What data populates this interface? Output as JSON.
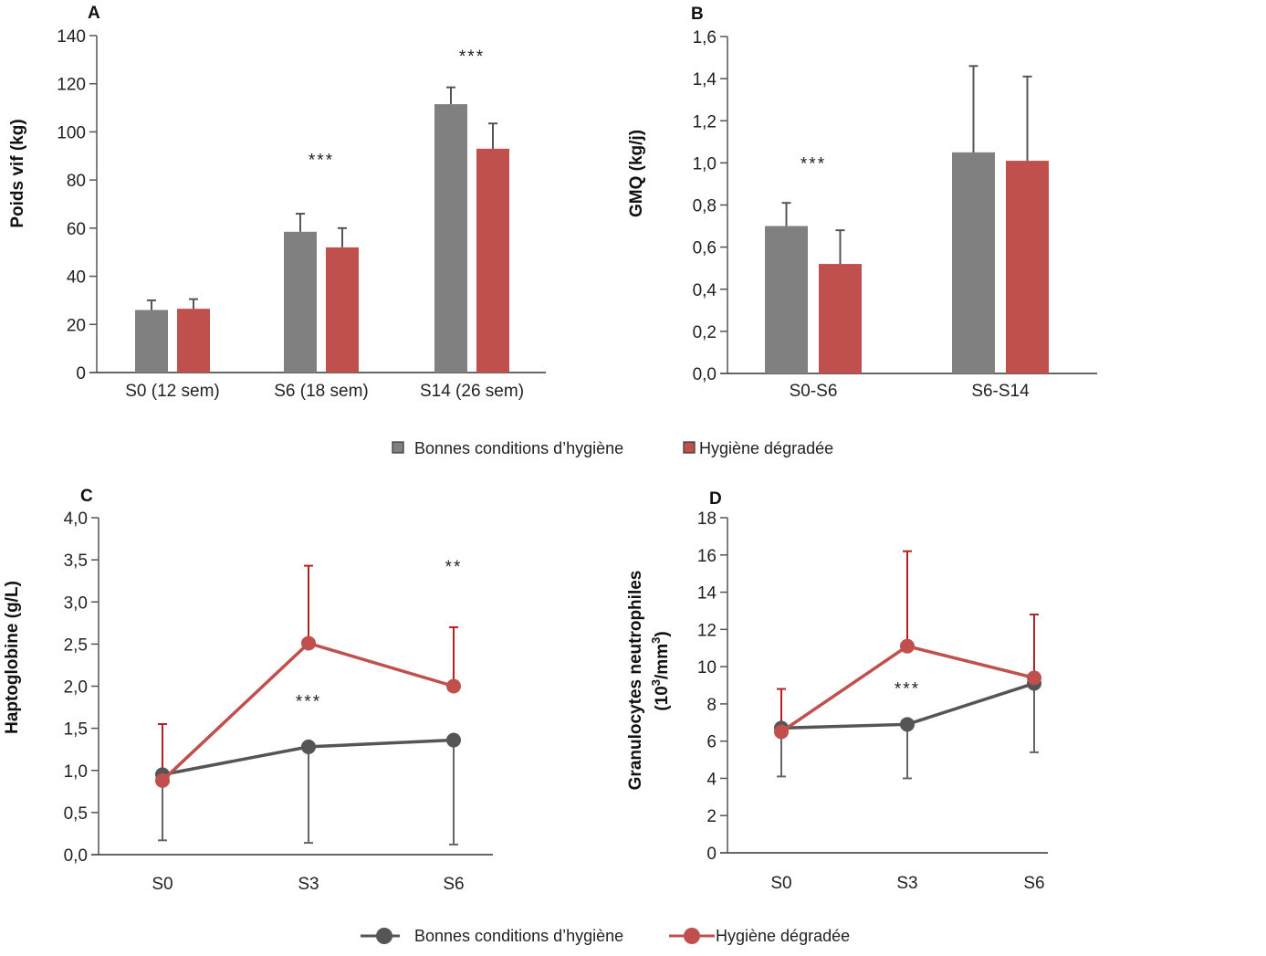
{
  "colors": {
    "good": "#808080",
    "good_line": "#555558",
    "degraded": "#c0504d",
    "degraded_err": "#b22222",
    "axis": "#555555"
  },
  "legend_bars": {
    "items": [
      {
        "label": "Bonnes conditions d’hygiène"
      },
      {
        "label": "Hygiène dégradée"
      }
    ]
  },
  "legend_lines": {
    "items": [
      {
        "label": "Bonnes conditions d’hygiène"
      },
      {
        "label": "Hygiène dégradée"
      }
    ]
  },
  "chart_data": [
    {
      "panel": "A",
      "type": "bar",
      "title": "",
      "ylabel": "Poids vif (kg)",
      "xlabel": "",
      "ylim": [
        0,
        140
      ],
      "yticks": [
        0,
        20,
        40,
        60,
        80,
        100,
        120,
        140
      ],
      "ytick_labels": [
        "0",
        "20",
        "40",
        "60",
        "80",
        "100",
        "120",
        "140"
      ],
      "categories": [
        "S0 (12 sem)",
        "S6 (18 sem)",
        "S14 (26 sem)"
      ],
      "series": [
        {
          "name": "Bonnes conditions d’hygiène",
          "values": [
            26,
            58.5,
            111.5
          ],
          "err_upper": [
            30,
            66,
            118.5
          ]
        },
        {
          "name": "Hygiène dégradée",
          "values": [
            26.5,
            52,
            93
          ],
          "err_upper": [
            30.5,
            60,
            103.5
          ]
        }
      ],
      "annotations": [
        {
          "category": 1,
          "text": "***",
          "y": 86
        },
        {
          "category": 2,
          "text": "***",
          "y": 129
        }
      ],
      "grid": false
    },
    {
      "panel": "B",
      "type": "bar",
      "title": "",
      "ylabel": "GMQ (kg/j)",
      "xlabel": "",
      "ylim": [
        0,
        1.6
      ],
      "yticks": [
        0,
        0.2,
        0.4,
        0.6,
        0.8,
        1.0,
        1.2,
        1.4,
        1.6
      ],
      "ytick_labels": [
        "0,0",
        "0,2",
        "0,4",
        "0,6",
        "0,8",
        "1,0",
        "1,2",
        "1,4",
        "1,6"
      ],
      "categories": [
        "S0-S6",
        "S6-S14"
      ],
      "series": [
        {
          "name": "Bonnes conditions d’hygiène",
          "values": [
            0.7,
            1.05
          ],
          "err_upper": [
            0.81,
            1.46
          ]
        },
        {
          "name": "Hygiène dégradée",
          "values": [
            0.52,
            1.01
          ],
          "err_upper": [
            0.68,
            1.41
          ]
        }
      ],
      "annotations": [
        {
          "category": 0,
          "text": "***",
          "y": 0.97
        }
      ],
      "grid": false
    },
    {
      "panel": "C",
      "type": "line",
      "title": "",
      "ylabel": "Haptoglobine (g/L)",
      "xlabel": "",
      "ylim": [
        0,
        4.0
      ],
      "yticks": [
        0,
        0.5,
        1.0,
        1.5,
        2.0,
        2.5,
        3.0,
        3.5,
        4.0
      ],
      "ytick_labels": [
        "0,0",
        "0,5",
        "1,0",
        "1,5",
        "2,0",
        "2,5",
        "3,0",
        "3,5",
        "4,0"
      ],
      "categories": [
        "S0",
        "S3",
        "S6"
      ],
      "series": [
        {
          "name": "Bonnes conditions d’hygiène",
          "values": [
            0.95,
            1.28,
            1.36
          ],
          "err_lower": [
            0.17,
            0.14,
            0.12
          ]
        },
        {
          "name": "Hygiène dégradée",
          "values": [
            0.88,
            2.51,
            2.0
          ],
          "err_upper": [
            1.55,
            3.43,
            2.7
          ]
        }
      ],
      "annotations": [
        {
          "category": 1,
          "text": "***",
          "y": 1.75
        },
        {
          "category": 2,
          "text": "**",
          "y": 3.35
        }
      ],
      "grid": false
    },
    {
      "panel": "D",
      "type": "line",
      "title": "",
      "ylabel": "Granulocytes neutrophiles",
      "ylabel_line2": "(10",
      "ylabel_sup1": "3",
      "ylabel_mid": "/mm",
      "ylabel_sup2": "3",
      "ylabel_end": ")",
      "xlabel": "",
      "ylim": [
        0,
        18
      ],
      "yticks": [
        0,
        2,
        4,
        6,
        8,
        10,
        12,
        14,
        16,
        18
      ],
      "ytick_labels": [
        "0",
        "2",
        "4",
        "6",
        "8",
        "10",
        "12",
        "14",
        "16",
        "18"
      ],
      "categories": [
        "S0",
        "S3",
        "S6"
      ],
      "series": [
        {
          "name": "Bonnes conditions d’hygiène",
          "values": [
            6.7,
            6.9,
            9.1
          ],
          "err_lower": [
            4.1,
            4.0,
            5.4
          ]
        },
        {
          "name": "Hygiène dégradée",
          "values": [
            6.5,
            11.1,
            9.4
          ],
          "err_upper": [
            8.8,
            16.2,
            12.8
          ]
        }
      ],
      "annotations": [
        {
          "category": 1,
          "text": "***",
          "y": 8.5
        }
      ],
      "grid": false
    }
  ]
}
